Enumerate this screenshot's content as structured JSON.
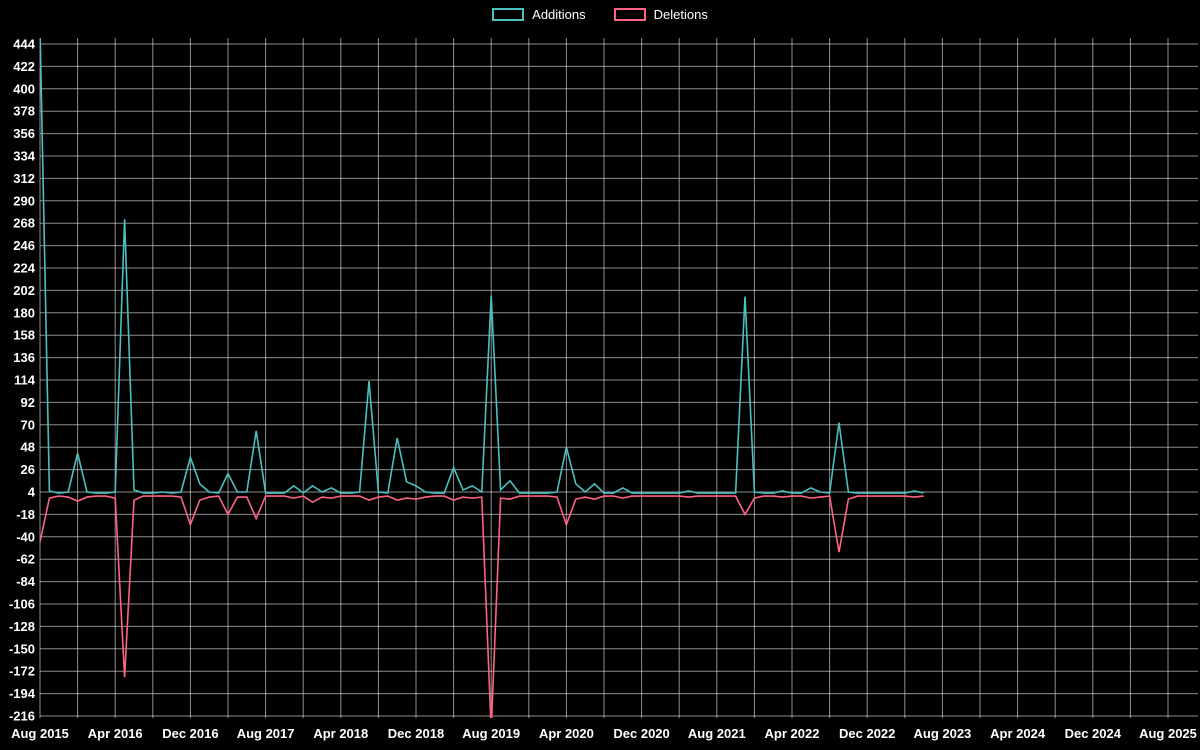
{
  "legend": {
    "items": [
      {
        "label": "Additions",
        "color": "#4BC0C0"
      },
      {
        "label": "Deletions",
        "color": "#FF6384"
      }
    ]
  },
  "colors": {
    "background": "#000000",
    "grid": "rgba(255,255,255,0.55)",
    "axis_text": "#ffffff",
    "additions": "#4BC0C0",
    "deletions": "#FF6384"
  },
  "chart_data": {
    "type": "line",
    "title": "",
    "xlabel": "",
    "ylabel": "",
    "legend_position": "top-center",
    "grid": true,
    "ylim": [
      -216,
      444
    ],
    "y_tick_step": 22,
    "y_ticks": [
      444,
      422,
      400,
      378,
      356,
      334,
      312,
      290,
      268,
      246,
      224,
      202,
      180,
      158,
      136,
      114,
      92,
      70,
      48,
      26,
      4,
      -18,
      -40,
      -62,
      -84,
      -106,
      -128,
      -150,
      -172,
      -194,
      -216
    ],
    "x_range_months": 120,
    "grid_month_step": 4,
    "x_tick_month_index": [
      0,
      8,
      16,
      24,
      32,
      40,
      48,
      56,
      64,
      72,
      80,
      88,
      96,
      104,
      112,
      120
    ],
    "x_tick_labels": [
      "Aug 2015",
      "Apr 2016",
      "Dec 2016",
      "Aug 2017",
      "Apr 2018",
      "Dec 2018",
      "Aug 2019",
      "Apr 2020",
      "Dec 2020",
      "Aug 2021",
      "Apr 2022",
      "Dec 2022",
      "Aug 2023",
      "Apr 2024",
      "Dec 2024",
      "Aug 2025"
    ],
    "series_start_month_label": "Aug 2015",
    "series": [
      {
        "name": "Additions",
        "color": "#4BC0C0",
        "values": [
          460,
          5,
          3,
          4,
          42,
          4,
          3,
          3,
          4,
          272,
          6,
          3,
          3,
          4,
          3,
          4,
          38,
          12,
          4,
          3,
          22,
          4,
          4,
          64,
          3,
          3,
          3,
          10,
          3,
          10,
          4,
          8,
          3,
          3,
          4,
          113,
          4,
          3,
          57,
          14,
          10,
          4,
          3,
          3,
          28,
          6,
          10,
          4,
          197,
          6,
          15,
          3,
          3,
          3,
          3,
          4,
          48,
          12,
          4,
          12,
          3,
          3,
          8,
          3,
          3,
          3,
          3,
          3,
          3,
          5,
          3,
          3,
          3,
          3,
          3,
          196,
          4,
          3,
          3,
          5,
          3,
          3,
          8,
          4,
          3,
          72,
          4,
          3,
          3,
          3,
          3,
          3,
          3,
          5,
          3
        ]
      },
      {
        "name": "Deletions",
        "color": "#FF6384",
        "values": [
          -45,
          -2,
          0,
          -1,
          -5,
          -1,
          0,
          0,
          -2,
          -178,
          -4,
          0,
          0,
          0,
          0,
          -1,
          -28,
          -4,
          -1,
          0,
          -18,
          -1,
          -1,
          -22,
          0,
          0,
          0,
          -2,
          0,
          -6,
          -1,
          -2,
          0,
          0,
          0,
          -4,
          -1,
          0,
          -4,
          -2,
          -3,
          -1,
          0,
          0,
          -4,
          -1,
          -2,
          -1,
          -230,
          -2,
          -3,
          0,
          0,
          0,
          0,
          -1,
          -28,
          -3,
          -1,
          -3,
          0,
          0,
          -2,
          0,
          0,
          0,
          0,
          0,
          0,
          -1,
          0,
          0,
          0,
          0,
          0,
          -18,
          -2,
          0,
          0,
          -1,
          0,
          0,
          -2,
          -1,
          0,
          -55,
          -3,
          0,
          0,
          0,
          0,
          0,
          0,
          -1,
          0
        ]
      }
    ]
  }
}
